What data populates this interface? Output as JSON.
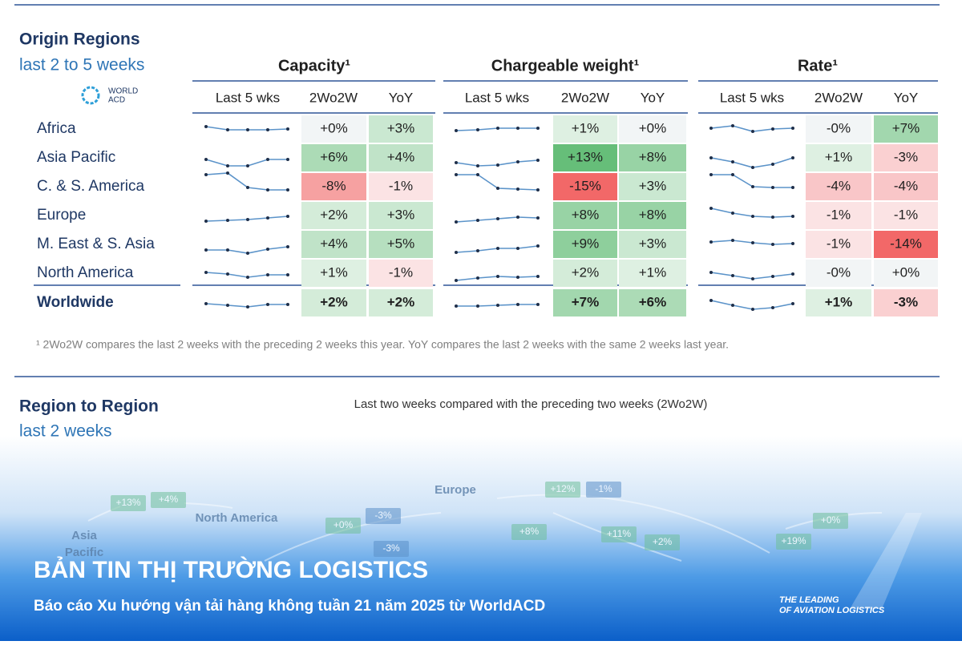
{
  "header": {
    "title": "Origin Regions",
    "subtitle": "last 2 to 5 weeks",
    "logo": [
      "WORLD",
      "ACD"
    ]
  },
  "table": {
    "groups": [
      "Capacity¹",
      "Chargeable weight¹",
      "Rate¹"
    ],
    "columns": [
      "Last 5 wks",
      "2Wo2W",
      "YoY"
    ],
    "rows": [
      {
        "region": "Africa",
        "cells": [
          "+0%",
          "+3%",
          "+1%",
          "+0%",
          "-0%",
          "+7%"
        ]
      },
      {
        "region": "Asia Pacific",
        "cells": [
          "+6%",
          "+4%",
          "+13%",
          "+8%",
          "+1%",
          "-3%"
        ]
      },
      {
        "region": "C. & S. America",
        "cells": [
          "-8%",
          "-1%",
          "-15%",
          "+3%",
          "-4%",
          "-4%"
        ]
      },
      {
        "region": "Europe",
        "cells": [
          "+2%",
          "+3%",
          "+8%",
          "+8%",
          "-1%",
          "-1%"
        ]
      },
      {
        "region": "M. East & S. Asia",
        "cells": [
          "+4%",
          "+5%",
          "+9%",
          "+3%",
          "-1%",
          "-14%"
        ]
      },
      {
        "region": "North America",
        "cells": [
          "+1%",
          "-1%",
          "+2%",
          "+1%",
          "-0%",
          "+0%"
        ]
      },
      {
        "region": "Worldwide",
        "cells": [
          "+2%",
          "+2%",
          "+7%",
          "+6%",
          "+1%",
          "-3%"
        ]
      }
    ],
    "footnote": "¹ 2Wo2W compares the last 2 weeks with the preceding 2 weeks this year. YoY compares the last 2 weeks with the same 2 weeks last year."
  },
  "section2": {
    "title": "Region to Region",
    "subtitle": "last 2 weeks",
    "chart_title": "Last two weeks compared with the preceding two weeks (2Wo2W)"
  },
  "map": {
    "labels": [
      "North America",
      "Asia",
      "Pacific",
      "Europe"
    ],
    "values": [
      "+13%",
      "+4%",
      "+0%",
      "-3%",
      "-3%",
      "+12%",
      "-1%",
      "+8%",
      "+11%",
      "+2%",
      "+0%",
      "+19%"
    ]
  },
  "banner": {
    "title": "BẢN TIN THỊ TRƯỜNG LOGISTICS",
    "subtitle": "Báo cáo Xu hướng vận tải hàng không tuần 21 năm 2025 từ WorldACD",
    "tagline": [
      "THE LEADING",
      "OF AVIATION LOGISTICS"
    ]
  }
}
